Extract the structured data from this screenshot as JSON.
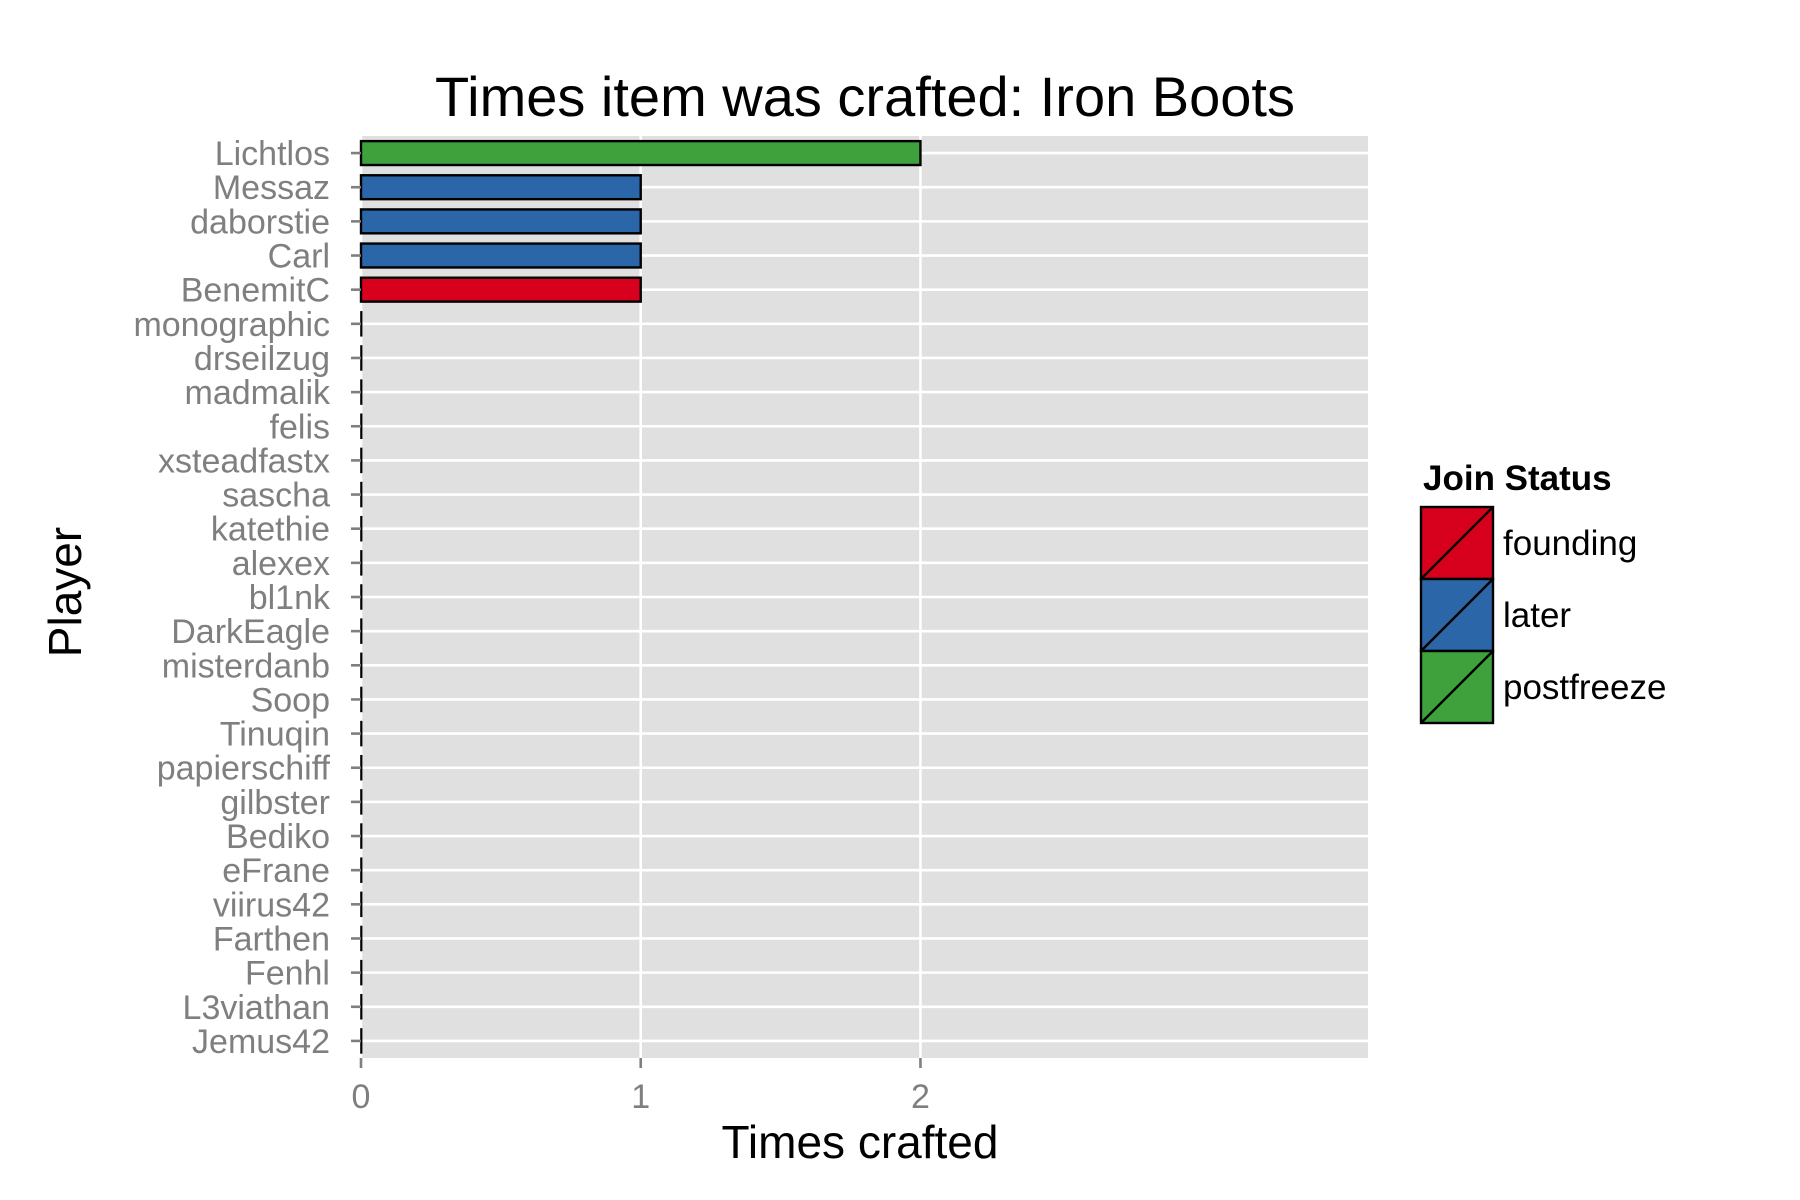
{
  "chart_data": {
    "type": "bar",
    "orientation": "horizontal",
    "title": "Times item was crafted: Iron Boots",
    "xlabel": "Times crafted",
    "ylabel": "Player",
    "xlim": [
      0,
      3.6
    ],
    "x_ticks": [
      "0",
      "1",
      "2"
    ],
    "grid": true,
    "legend_position": "right",
    "legend": {
      "title": "Join Status",
      "entries": [
        {
          "label": "founding",
          "color": "#d7001d"
        },
        {
          "label": "later",
          "color": "#2b66a8"
        },
        {
          "label": "postfreeze",
          "color": "#3fa13b"
        }
      ]
    },
    "categories": [
      "Lichtlos",
      "Messaz",
      "daborstie",
      "Carl",
      "BenemitC",
      "monographic",
      "drseilzug",
      "madmalik",
      "felis",
      "xsteadfastx",
      "sascha",
      "katethie",
      "alexex",
      "bl1nk",
      "DarkEagle",
      "misterdanb",
      "Soop",
      "Tinuqin",
      "papierschiff",
      "gilbster",
      "Bediko",
      "eFrane",
      "viirus42",
      "Farthen",
      "Fenhl",
      "L3viathan",
      "Jemus42"
    ],
    "values": [
      2,
      1,
      1,
      1,
      1,
      0,
      0,
      0,
      0,
      0,
      0,
      0,
      0,
      0,
      0,
      0,
      0,
      0,
      0,
      0,
      0,
      0,
      0,
      0,
      0,
      0,
      0
    ],
    "groups": [
      "postfreeze",
      "later",
      "later",
      "later",
      "founding",
      "",
      "",
      "",
      "",
      "",
      "",
      "",
      "",
      "",
      "",
      "",
      "",
      "",
      "",
      "",
      "",
      "",
      "",
      "",
      "",
      "",
      ""
    ]
  },
  "colors": {
    "panel_background": "#e0e0e0",
    "grid": "#ffffff",
    "bar_outline": "#000000",
    "tick_text": "#7f7f7f"
  }
}
